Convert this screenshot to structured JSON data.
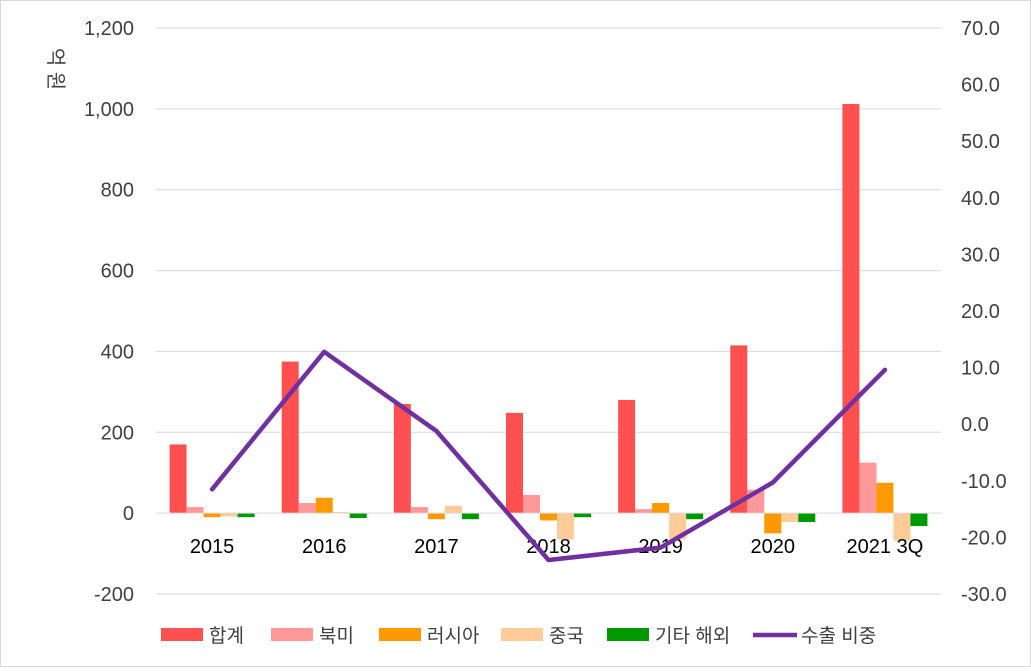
{
  "chart_data": {
    "type": "bar+line",
    "y_left_label": "억 원",
    "y_left_ticks": [
      "1,200",
      "1,000",
      "800",
      "600",
      "400",
      "200",
      "0",
      "-200"
    ],
    "y_right_ticks": [
      "70.0",
      "60.0",
      "50.0",
      "40.0",
      "30.0",
      "20.0",
      "10.0",
      "0.0",
      "-10.0",
      "-20.0",
      "-30.0"
    ],
    "y_left_range": [
      -200,
      1200
    ],
    "y_right_range": [
      -30,
      70
    ],
    "categories": [
      "2015",
      "2016",
      "2017",
      "2018",
      "2019",
      "2020",
      "2021 3Q"
    ],
    "series": [
      {
        "name": "합계",
        "color": "#ff5050",
        "values": [
          170,
          375,
          270,
          248,
          280,
          415,
          1012
        ]
      },
      {
        "name": "북미",
        "color": "#ff9999",
        "values": [
          15,
          25,
          15,
          45,
          10,
          58,
          125
        ]
      },
      {
        "name": "러시아",
        "color": "#ff9900",
        "values": [
          -10,
          38,
          -15,
          -18,
          25,
          -50,
          75
        ]
      },
      {
        "name": "중국",
        "color": "#ffcc99",
        "values": [
          -8,
          3,
          18,
          -65,
          -65,
          -22,
          -68
        ]
      },
      {
        "name": "기타 해외",
        "color": "#009900",
        "values": [
          -10,
          -12,
          -15,
          -10,
          -15,
          -22,
          -32
        ]
      }
    ],
    "line": {
      "name": "수출 비중",
      "color": "#7030a0",
      "axis": "right",
      "values": [
        -11.5,
        12.8,
        -1.2,
        -24.0,
        -21.8,
        -10.3,
        9.6
      ]
    }
  }
}
